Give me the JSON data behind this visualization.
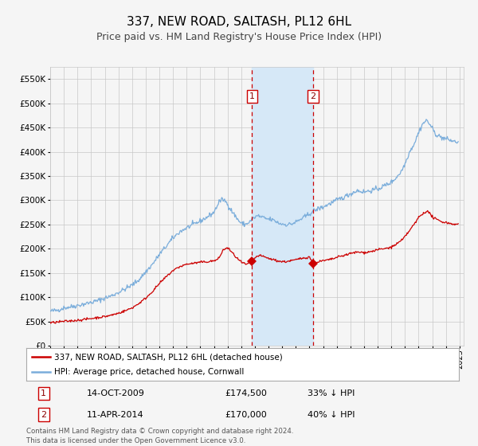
{
  "title": "337, NEW ROAD, SALTASH, PL12 6HL",
  "subtitle": "Price paid vs. HM Land Registry's House Price Index (HPI)",
  "title_fontsize": 11,
  "subtitle_fontsize": 9,
  "ylim": [
    0,
    575000
  ],
  "yticks": [
    0,
    50000,
    100000,
    150000,
    200000,
    250000,
    300000,
    350000,
    400000,
    450000,
    500000,
    550000
  ],
  "legend_label_red": "337, NEW ROAD, SALTASH, PL12 6HL (detached house)",
  "legend_label_blue": "HPI: Average price, detached house, Cornwall",
  "annotation1_label": "1",
  "annotation1_date": "14-OCT-2009",
  "annotation1_price": "£174,500",
  "annotation1_pct": "33% ↓ HPI",
  "annotation2_label": "2",
  "annotation2_date": "11-APR-2014",
  "annotation2_price": "£170,000",
  "annotation2_pct": "40% ↓ HPI",
  "footer": "Contains HM Land Registry data © Crown copyright and database right 2024.\nThis data is licensed under the Open Government Licence v3.0.",
  "hpi_color": "#7aaddb",
  "price_color": "#cc0000",
  "grid_color": "#c8c8c8",
  "bg_color": "#f5f5f5",
  "shade_color": "#d6e8f7",
  "marker1_x": 2009.79,
  "marker1_y": 174500,
  "marker2_x": 2014.27,
  "marker2_y": 170000,
  "vline1_x": 2009.79,
  "vline2_x": 2014.27,
  "xlim_left": 1995.0,
  "xlim_right": 2025.3
}
